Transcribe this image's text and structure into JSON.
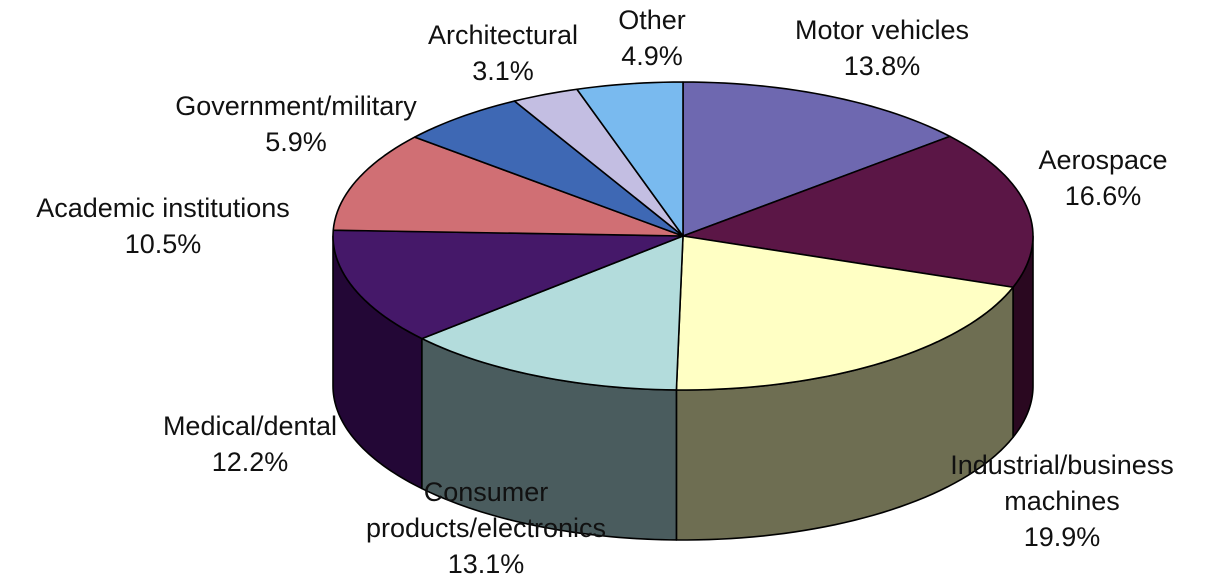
{
  "chart_data": {
    "type": "pie",
    "style": "3d",
    "start_angle": "12 o'clock",
    "direction": "clockwise",
    "legend": "none",
    "slices": [
      {
        "name": "Motor vehicles",
        "label_lines": [
          "Motor vehicles"
        ],
        "value": 13.8,
        "value_label": "13.8%",
        "color": "#6E68B0",
        "side_color": "#3f3b6a"
      },
      {
        "name": "Aerospace",
        "label_lines": [
          "Aerospace"
        ],
        "value": 16.6,
        "value_label": "16.6%",
        "color": "#5B1646",
        "side_color": "#2a0820"
      },
      {
        "name": "Industrial/business machines",
        "label_lines": [
          "Industrial/business",
          "machines"
        ],
        "value": 19.9,
        "value_label": "19.9%",
        "color": "#FFFFC4",
        "side_color": "#6E6E52"
      },
      {
        "name": "Consumer products/electronics",
        "label_lines": [
          "Consumer",
          "products/electronics"
        ],
        "value": 13.1,
        "value_label": "13.1%",
        "color": "#B3DCDC",
        "side_color": "#4A5C5E"
      },
      {
        "name": "Medical/dental",
        "label_lines": [
          "Medical/dental"
        ],
        "value": 12.2,
        "value_label": "12.2%",
        "color": "#451869",
        "side_color": "#230736"
      },
      {
        "name": "Academic institutions",
        "label_lines": [
          "Academic institutions"
        ],
        "value": 10.5,
        "value_label": "10.5%",
        "color": "#D06F74",
        "side_color": "#7a3c40"
      },
      {
        "name": "Government/military",
        "label_lines": [
          "Government/military"
        ],
        "value": 5.9,
        "value_label": "5.9%",
        "color": "#3E68B4",
        "side_color": "#22396a"
      },
      {
        "name": "Architectural",
        "label_lines": [
          "Architectural"
        ],
        "value": 3.1,
        "value_label": "3.1%",
        "color": "#C3BEE2",
        "side_color": "#6e6a8a"
      },
      {
        "name": "Other",
        "label_lines": [
          "Other"
        ],
        "value": 4.9,
        "value_label": "4.9%",
        "color": "#79BAEF",
        "side_color": "#40688a"
      }
    ]
  }
}
